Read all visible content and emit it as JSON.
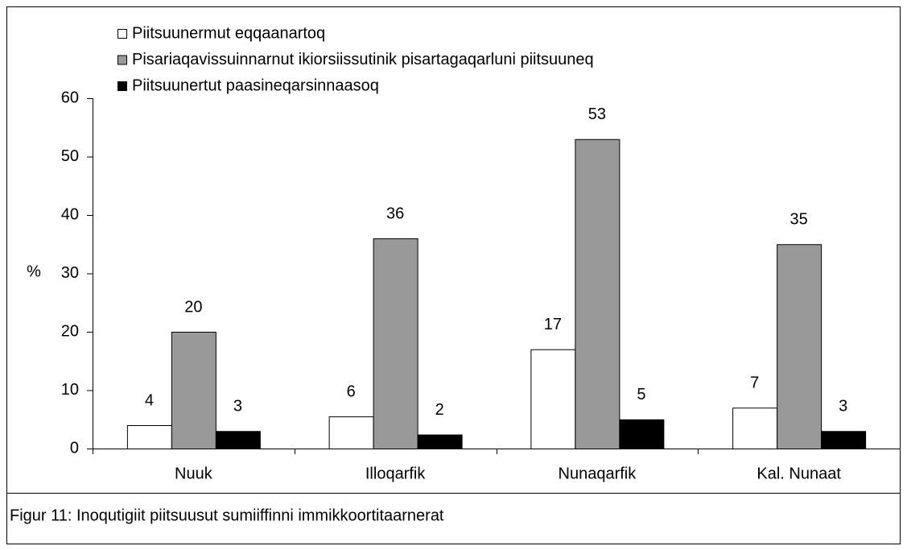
{
  "chart_data": {
    "type": "bar",
    "categories": [
      "Nuuk",
      "Illoqarfik",
      "Nunaqarfik",
      "Kal. Nunaat"
    ],
    "series": [
      {
        "name": "Piitsuunermut eqqaanartoq",
        "color": "#ffffff",
        "values": [
          4,
          5.5,
          17,
          7
        ],
        "value_labels": [
          "4",
          "6",
          "17",
          "7"
        ]
      },
      {
        "name": "Pisariaqavissuinnarnut ikiorsiissutinik pisartagaqarluni piitsuuneq",
        "color": "#999999",
        "values": [
          20,
          36,
          53,
          35
        ],
        "value_labels": [
          "20",
          "36",
          "53",
          "35"
        ]
      },
      {
        "name": "Piitsuunertut paasineqarsinnaasoq",
        "color": "#000000",
        "values": [
          3,
          2.4,
          5,
          3
        ],
        "value_labels": [
          "3",
          "2",
          "5",
          "3"
        ]
      }
    ],
    "y_label": "%",
    "ylim": [
      0,
      60
    ],
    "yticks": [
      0,
      10,
      20,
      30,
      40,
      50,
      60
    ],
    "caption": "Figur 11: Inoqutigiit piitsuusut sumiiffinni immikkoortitaarnerat"
  }
}
